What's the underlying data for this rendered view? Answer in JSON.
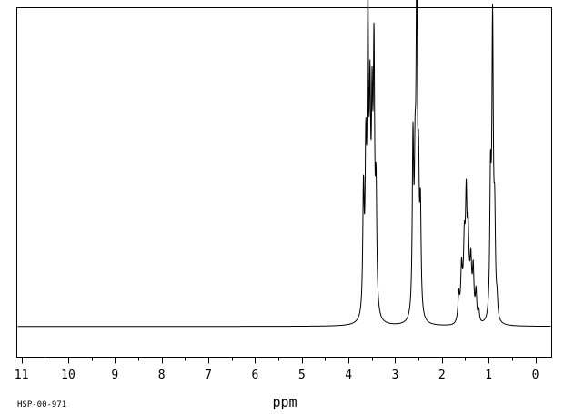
{
  "chart_data": {
    "type": "line",
    "title": "",
    "xlabel": "ppm",
    "ylabel": "",
    "xlim": [
      11.1,
      -0.35
    ],
    "x_reversed": true,
    "ylim": [
      -0.13,
      1.35
    ],
    "grid": false,
    "legend": "none",
    "x_ticks": [
      11,
      10,
      9,
      8,
      7,
      6,
      5,
      4,
      3,
      2,
      1,
      0
    ],
    "x_tick_labels": [
      "11",
      "10",
      "9",
      "8",
      "7",
      "6",
      "5",
      "4",
      "3",
      "2",
      "1",
      "0"
    ],
    "baseline": 0,
    "peaks": [
      {
        "ppm": 3.68,
        "height": 0.51
      },
      {
        "ppm": 3.63,
        "height": 0.6
      },
      {
        "ppm": 3.585,
        "height": 1.17
      },
      {
        "ppm": 3.54,
        "height": 0.75
      },
      {
        "ppm": 3.495,
        "height": 0.72
      },
      {
        "ppm": 3.455,
        "height": 1.02
      },
      {
        "ppm": 3.41,
        "height": 0.48
      },
      {
        "ppm": 2.62,
        "height": 0.72
      },
      {
        "ppm": 2.575,
        "height": 0.5
      },
      {
        "ppm": 2.54,
        "height": 1.33
      },
      {
        "ppm": 2.5,
        "height": 0.5
      },
      {
        "ppm": 2.46,
        "height": 0.42
      },
      {
        "ppm": 1.64,
        "height": 0.1
      },
      {
        "ppm": 1.58,
        "height": 0.16
      },
      {
        "ppm": 1.52,
        "height": 0.2
      },
      {
        "ppm": 1.48,
        "height": 0.36
      },
      {
        "ppm": 1.44,
        "height": 0.22
      },
      {
        "ppm": 1.38,
        "height": 0.16
      },
      {
        "ppm": 1.33,
        "height": 0.18
      },
      {
        "ppm": 1.27,
        "height": 0.12
      },
      {
        "ppm": 1.21,
        "height": 0.05
      },
      {
        "ppm": 0.96,
        "height": 0.52
      },
      {
        "ppm": 0.915,
        "height": 1.13
      },
      {
        "ppm": 0.87,
        "height": 0.34
      },
      {
        "ppm": 0.82,
        "height": 0.07
      }
    ],
    "broad_bands": [
      {
        "ppm": 1.47,
        "height": 0.18,
        "width": 0.13
      },
      {
        "ppm": 0.91,
        "height": 0.12,
        "width": 0.06
      },
      {
        "ppm": 3.53,
        "height": 0.05,
        "width": 0.1
      }
    ]
  },
  "footer": {
    "spectrum_id": "HSP-00-971"
  }
}
